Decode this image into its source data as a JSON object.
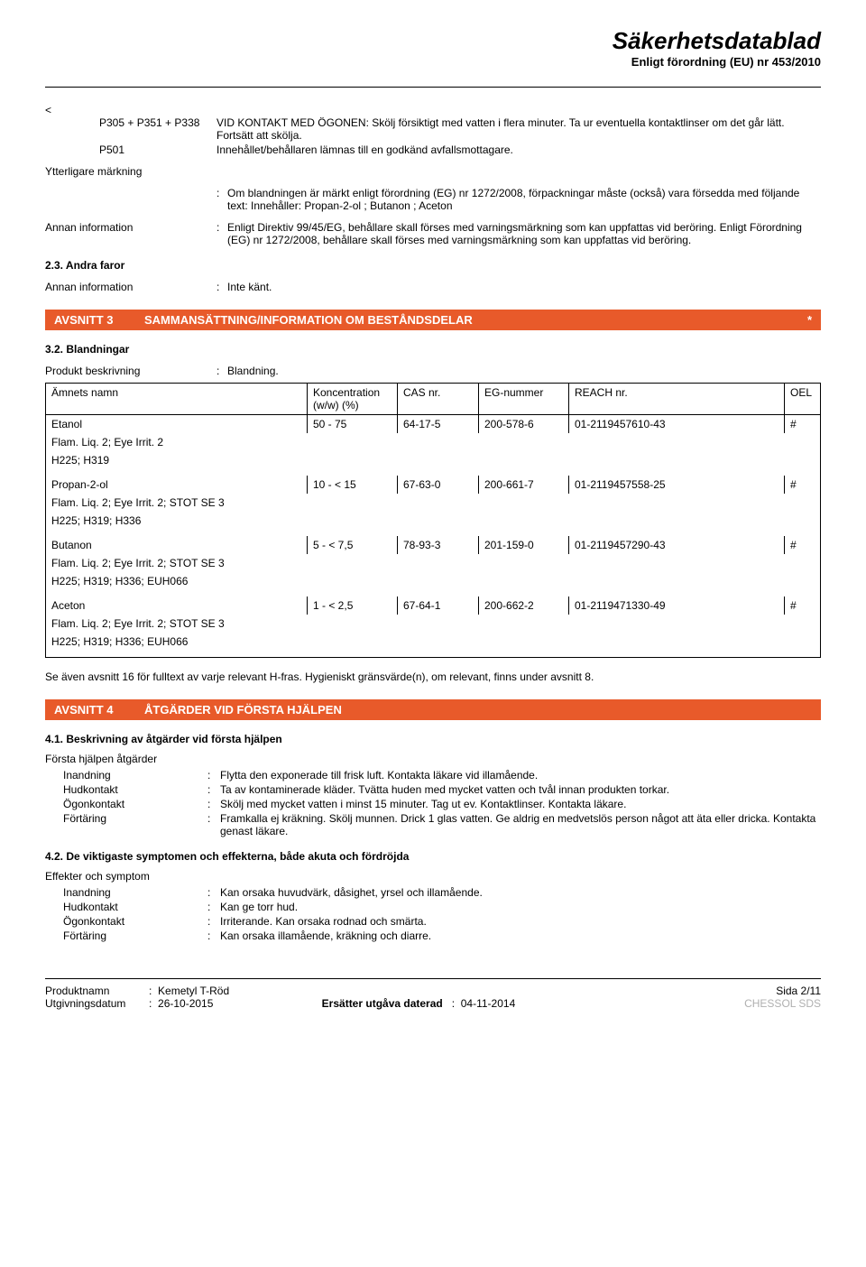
{
  "header": {
    "title": "Säkerhetsdatablad",
    "subtitle": "Enligt förordning (EU) nr 453/2010"
  },
  "pstatements": [
    {
      "codes": "P305 + P351 + P338",
      "text": "VID KONTAKT MED ÖGONEN: Skölj försiktigt med vatten i flera minuter. Ta ur eventuella kontaktlinser om det går lätt. Fortsätt att skölja."
    },
    {
      "codes": "P501",
      "text": "Innehållet/behållaren lämnas till en godkänd avfallsmottagare."
    }
  ],
  "labels": {
    "ytterligare": "Ytterligare märkning",
    "ytterligare_text": "Om blandningen är märkt enligt förordning (EG) nr 1272/2008, förpackningar måste (också) vara försedda med följande text: Innehåller: Propan-2-ol ; Butanon ; Aceton",
    "annan1": "Annan information",
    "annan1_text": "Enligt Direktiv 99/45/EG, behållare skall förses med varningsmärkning som kan uppfattas vid beröring. Enligt Förordning (EG) nr 1272/2008, behållare skall förses med varningsmärkning som kan uppfattas vid beröring.",
    "sub23": "2.3. Andra faror",
    "annan2": "Annan information",
    "annan2_text": "Inte känt."
  },
  "section3": {
    "num": "AVSNITT 3",
    "title": "SAMMANSÄTTNING/INFORMATION OM BESTÅNDSDELAR",
    "star": "*",
    "bg": "#e85a2a"
  },
  "section32": "3.2. Blandningar",
  "produkt_label": "Produkt beskrivning",
  "produkt_value": "Blandning.",
  "table_headers": {
    "name": "Ämnets namn",
    "conc": "Koncentration\n(w/w) (%)",
    "cas": "CAS nr.",
    "eg": "EG-nummer",
    "reach": "REACH nr.",
    "oel": "OEL"
  },
  "substances": [
    {
      "name": "Etanol",
      "conc": "50 - 75",
      "cas": "64-17-5",
      "eg": "200-578-6",
      "reach": "01-2119457610-43",
      "oel": "#",
      "class": "Flam. Liq. 2; Eye Irrit. 2",
      "h": "H225; H319"
    },
    {
      "name": "Propan-2-ol",
      "conc": "10 - < 15",
      "cas": "67-63-0",
      "eg": "200-661-7",
      "reach": "01-2119457558-25",
      "oel": "#",
      "class": "Flam. Liq. 2; Eye Irrit. 2; STOT SE 3",
      "h": "H225; H319; H336"
    },
    {
      "name": "Butanon",
      "conc": "5 - < 7,5",
      "cas": "78-93-3",
      "eg": "201-159-0",
      "reach": "01-2119457290-43",
      "oel": "#",
      "class": "Flam. Liq. 2; Eye Irrit. 2; STOT SE 3",
      "h": "H225; H319; H336; EUH066"
    },
    {
      "name": "Aceton",
      "conc": "1 - < 2,5",
      "cas": "67-64-1",
      "eg": "200-662-2",
      "reach": "01-2119471330-49",
      "oel": "#",
      "class": "Flam. Liq. 2; Eye Irrit. 2; STOT SE 3",
      "h": "H225; H319; H336; EUH066"
    }
  ],
  "note3": "Se även avsnitt 16 för fulltext av varje relevant H-fras. Hygieniskt gränsvärde(n), om relevant, finns under avsnitt 8.",
  "section4": {
    "num": "AVSNITT 4",
    "title": "ÅTGÄRDER VID FÖRSTA HJÄLPEN",
    "bg": "#e85a2a"
  },
  "s41": "4.1. Beskrivning av åtgärder vid första hjälpen",
  "fa_heading": "Första hjälpen åtgärder",
  "firstaid": [
    {
      "k": "Inandning",
      "v": "Flytta den exponerade till frisk luft. Kontakta läkare vid illamående."
    },
    {
      "k": "Hudkontakt",
      "v": "Ta av kontaminerade kläder. Tvätta huden med mycket vatten och tvål innan produkten torkar."
    },
    {
      "k": "Ögonkontakt",
      "v": "Skölj med mycket vatten i minst 15 minuter. Tag ut ev. Kontaktlinser. Kontakta läkare."
    },
    {
      "k": "Förtäring",
      "v": "Framkalla ej kräkning. Skölj munnen. Drick 1 glas vatten. Ge aldrig en medvetslös person något att äta eller dricka. Kontakta genast läkare."
    }
  ],
  "s42": "4.2. De viktigaste symptomen och effekterna, både akuta och fördröjda",
  "eff_heading": "Effekter och symptom",
  "effects": [
    {
      "k": "Inandning",
      "v": "Kan orsaka huvudvärk, dåsighet, yrsel och illamående."
    },
    {
      "k": "Hudkontakt",
      "v": "Kan ge torr hud."
    },
    {
      "k": "Ögonkontakt",
      "v": "Irriterande. Kan orsaka rodnad och smärta."
    },
    {
      "k": "Förtäring",
      "v": "Kan orsaka illamående, kräkning och diarre."
    }
  ],
  "footer": {
    "produktnamn_k": "Produktnamn",
    "produktnamn_v": "Kemetyl T-Röd",
    "utgiv_k": "Utgivningsdatum",
    "utgiv_v": "26-10-2015",
    "ers_k": "Ersätter utgåva daterad",
    "ers_v": "04-11-2014",
    "sida": "Sida 2/11",
    "sds": "CHESSOL SDS"
  }
}
